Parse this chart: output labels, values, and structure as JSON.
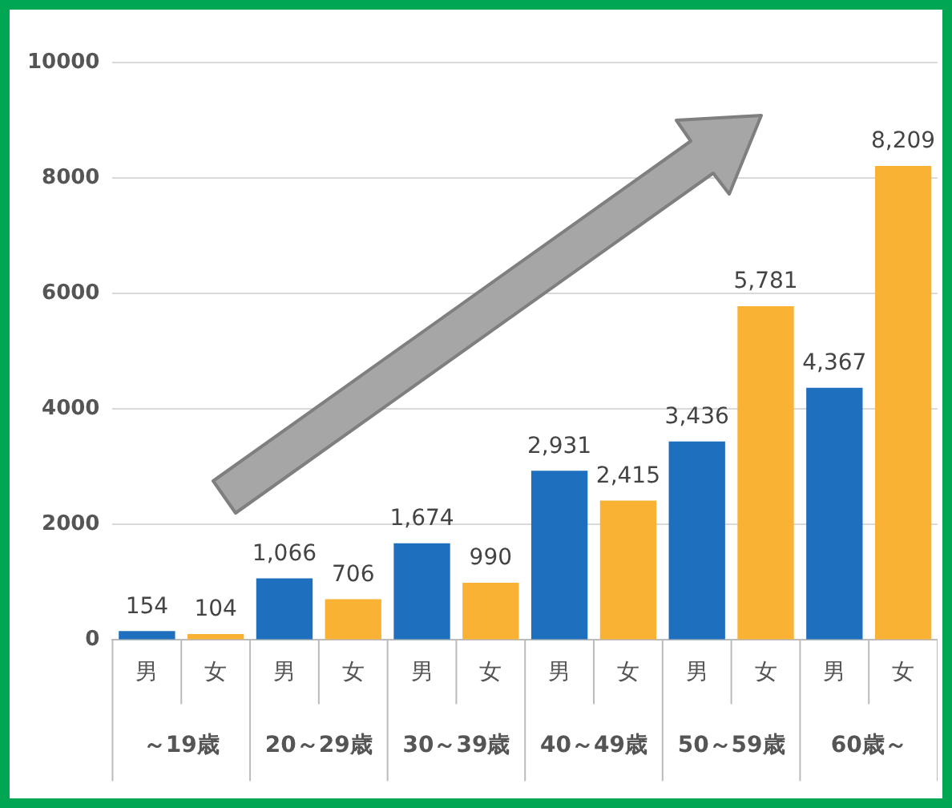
{
  "chart_data": {
    "type": "bar",
    "categories": [
      "男",
      "女",
      "男",
      "女",
      "男",
      "女",
      "男",
      "女",
      "男",
      "女",
      "男",
      "女"
    ],
    "values": [
      154,
      104,
      1066,
      706,
      1674,
      990,
      2931,
      2415,
      3436,
      5781,
      4367,
      8209
    ],
    "colors": [
      "#1f6fbf",
      "#f9b233",
      "#1f6fbf",
      "#f9b233",
      "#1f6fbf",
      "#f9b233",
      "#1f6fbf",
      "#f9b233",
      "#1f6fbf",
      "#f9b233",
      "#1f6fbf",
      "#f9b233"
    ],
    "value_labels": [
      "154",
      "104",
      "1,066",
      "706",
      "1,674",
      "990",
      "2,931",
      "2,415",
      "3,436",
      "5,781",
      "4,367",
      "8,209"
    ],
    "annotations": [
      "～19歳",
      "20～29歳",
      "30～39歳",
      "40～49歳",
      "50～59歳",
      "60歳～"
    ],
    "ylim": [
      0,
      10000
    ],
    "yticks": [
      0,
      2000,
      4000,
      6000,
      8000,
      10000
    ],
    "grid": "y",
    "legend": false
  }
}
